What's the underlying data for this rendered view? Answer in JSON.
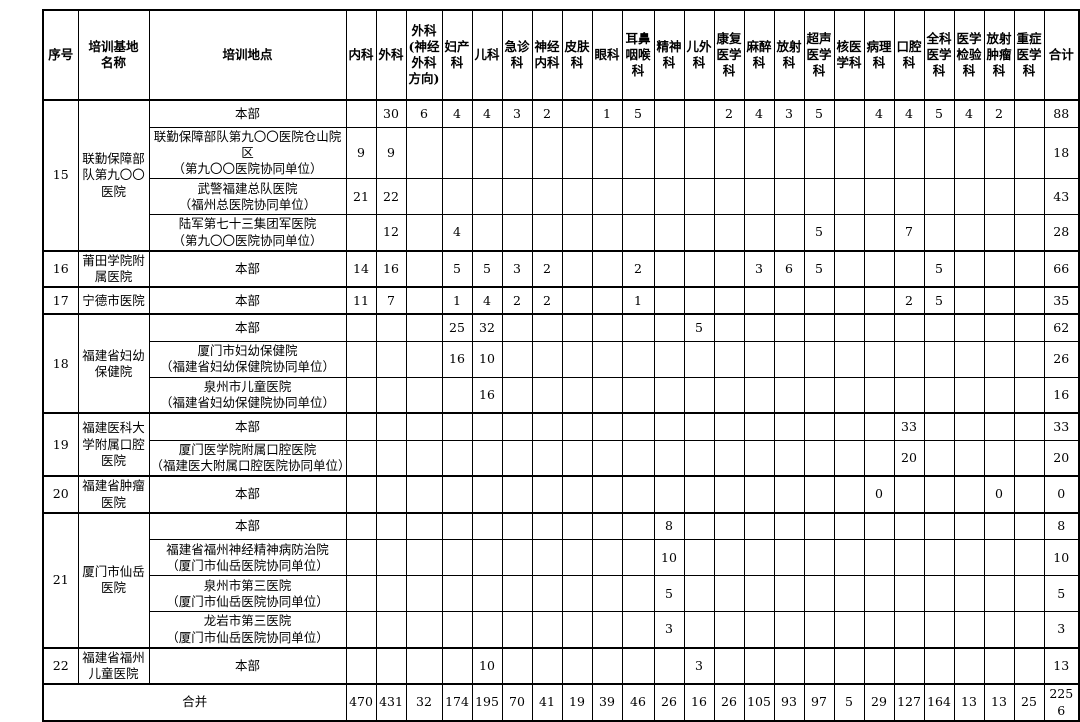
{
  "table": {
    "headers": [
      "序号",
      "培训基地名称",
      "培训地点",
      "内科",
      "外科",
      "外科(神经外科方向)",
      "妇产科",
      "儿科",
      "急诊科",
      "神经内科",
      "皮肤科",
      "眼科",
      "耳鼻咽喉科",
      "精神科",
      "儿外科",
      "康复医学科",
      "麻醉科",
      "放射科",
      "超声医学科",
      "核医学科",
      "病理科",
      "口腔科",
      "全科医学科",
      "医学检验科",
      "放射肿瘤科",
      "重症医学科",
      "合计"
    ],
    "groups": [
      {
        "no": "15",
        "base": "联勤保障部队第九〇〇医院",
        "rows": [
          {
            "location": "本部",
            "sub": "",
            "values": [
              "",
              "30",
              "6",
              "4",
              "4",
              "3",
              "2",
              "",
              "1",
              "5",
              "",
              "",
              "2",
              "4",
              "3",
              "5",
              "",
              "4",
              "4",
              "5",
              "4",
              "2",
              ""
            ],
            "total": "88"
          },
          {
            "location": "联勤保障部队第九〇〇医院仓山院区",
            "sub": "（第九〇〇医院协同单位）",
            "values": [
              "9",
              "9",
              "",
              "",
              "",
              "",
              "",
              "",
              "",
              "",
              "",
              "",
              "",
              "",
              "",
              "",
              "",
              "",
              "",
              "",
              "",
              "",
              ""
            ],
            "total": "18"
          },
          {
            "location": "武警福建总队医院",
            "sub": "（福州总医院协同单位）",
            "values": [
              "21",
              "22",
              "",
              "",
              "",
              "",
              "",
              "",
              "",
              "",
              "",
              "",
              "",
              "",
              "",
              "",
              "",
              "",
              "",
              "",
              "",
              "",
              ""
            ],
            "total": "43"
          },
          {
            "location": "陆军第七十三集团军医院",
            "sub": "（第九〇〇医院协同单位）",
            "values": [
              "",
              "12",
              "",
              "4",
              "",
              "",
              "",
              "",
              "",
              "",
              "",
              "",
              "",
              "",
              "",
              "5",
              "",
              "",
              "7",
              "",
              "",
              "",
              ""
            ],
            "total": "28"
          }
        ]
      },
      {
        "no": "16",
        "base": "莆田学院附属医院",
        "rows": [
          {
            "location": "本部",
            "sub": "",
            "values": [
              "14",
              "16",
              "",
              "5",
              "5",
              "3",
              "2",
              "",
              "",
              "2",
              "",
              "",
              "",
              "3",
              "6",
              "5",
              "",
              "",
              "",
              "5",
              "",
              "",
              ""
            ],
            "total": "66"
          }
        ]
      },
      {
        "no": "17",
        "base": "宁德市医院",
        "rows": [
          {
            "location": "本部",
            "sub": "",
            "values": [
              "11",
              "7",
              "",
              "1",
              "4",
              "2",
              "2",
              "",
              "",
              "1",
              "",
              "",
              "",
              "",
              "",
              "",
              "",
              "",
              "2",
              "5",
              "",
              "",
              ""
            ],
            "total": "35"
          }
        ]
      },
      {
        "no": "18",
        "base": "福建省妇幼保健院",
        "rows": [
          {
            "location": "本部",
            "sub": "",
            "values": [
              "",
              "",
              "",
              "25",
              "32",
              "",
              "",
              "",
              "",
              "",
              "",
              "5",
              "",
              "",
              "",
              "",
              "",
              "",
              "",
              "",
              "",
              "",
              ""
            ],
            "total": "62"
          },
          {
            "location": "厦门市妇幼保健院",
            "sub": "（福建省妇幼保健院协同单位）",
            "values": [
              "",
              "",
              "",
              "16",
              "10",
              "",
              "",
              "",
              "",
              "",
              "",
              "",
              "",
              "",
              "",
              "",
              "",
              "",
              "",
              "",
              "",
              "",
              ""
            ],
            "total": "26"
          },
          {
            "location": "泉州市儿童医院",
            "sub": "（福建省妇幼保健院协同单位）",
            "values": [
              "",
              "",
              "",
              "",
              "16",
              "",
              "",
              "",
              "",
              "",
              "",
              "",
              "",
              "",
              "",
              "",
              "",
              "",
              "",
              "",
              "",
              "",
              ""
            ],
            "total": "16"
          }
        ]
      },
      {
        "no": "19",
        "base": "福建医科大学附属口腔医院",
        "rows": [
          {
            "location": "本部",
            "sub": "",
            "values": [
              "",
              "",
              "",
              "",
              "",
              "",
              "",
              "",
              "",
              "",
              "",
              "",
              "",
              "",
              "",
              "",
              "",
              "",
              "33",
              "",
              "",
              "",
              ""
            ],
            "total": "33"
          },
          {
            "location": "厦门医学院附属口腔医院",
            "sub": "（福建医大附属口腔医院协同单位）",
            "values": [
              "",
              "",
              "",
              "",
              "",
              "",
              "",
              "",
              "",
              "",
              "",
              "",
              "",
              "",
              "",
              "",
              "",
              "",
              "20",
              "",
              "",
              "",
              ""
            ],
            "total": "20"
          }
        ]
      },
      {
        "no": "20",
        "base": "福建省肿瘤医院",
        "rows": [
          {
            "location": "本部",
            "sub": "",
            "values": [
              "",
              "",
              "",
              "",
              "",
              "",
              "",
              "",
              "",
              "",
              "",
              "",
              "",
              "",
              "",
              "",
              "",
              "0",
              "",
              "",
              "",
              "0",
              ""
            ],
            "total": "0"
          }
        ]
      },
      {
        "no": "21",
        "base": "厦门市仙岳医院",
        "rows": [
          {
            "location": "本部",
            "sub": "",
            "values": [
              "",
              "",
              "",
              "",
              "",
              "",
              "",
              "",
              "",
              "",
              "8",
              "",
              "",
              "",
              "",
              "",
              "",
              "",
              "",
              "",
              "",
              "",
              ""
            ],
            "total": "8"
          },
          {
            "location": "福建省福州神经精神病防治院",
            "sub": "（厦门市仙岳医院协同单位）",
            "values": [
              "",
              "",
              "",
              "",
              "",
              "",
              "",
              "",
              "",
              "",
              "10",
              "",
              "",
              "",
              "",
              "",
              "",
              "",
              "",
              "",
              "",
              "",
              ""
            ],
            "total": "10"
          },
          {
            "location": "泉州市第三医院",
            "sub": "（厦门市仙岳医院协同单位）",
            "values": [
              "",
              "",
              "",
              "",
              "",
              "",
              "",
              "",
              "",
              "",
              "5",
              "",
              "",
              "",
              "",
              "",
              "",
              "",
              "",
              "",
              "",
              "",
              ""
            ],
            "total": "5"
          },
          {
            "location": "龙岩市第三医院",
            "sub": "（厦门市仙岳医院协同单位）",
            "values": [
              "",
              "",
              "",
              "",
              "",
              "",
              "",
              "",
              "",
              "",
              "3",
              "",
              "",
              "",
              "",
              "",
              "",
              "",
              "",
              "",
              "",
              "",
              ""
            ],
            "total": "3"
          }
        ]
      },
      {
        "no": "22",
        "base": "福建省福州儿童医院",
        "rows": [
          {
            "location": "本部",
            "sub": "",
            "values": [
              "",
              "",
              "",
              "",
              "10",
              "",
              "",
              "",
              "",
              "",
              "",
              "3",
              "",
              "",
              "",
              "",
              "",
              "",
              "",
              "",
              "",
              "",
              ""
            ],
            "total": "13"
          }
        ]
      }
    ],
    "footer": {
      "label": "合并",
      "values": [
        "470",
        "431",
        "32",
        "174",
        "195",
        "70",
        "41",
        "19",
        "39",
        "46",
        "26",
        "16",
        "26",
        "105",
        "93",
        "97",
        "5",
        "29",
        "127",
        "164",
        "13",
        "13",
        "25"
      ],
      "total": "2256"
    }
  }
}
